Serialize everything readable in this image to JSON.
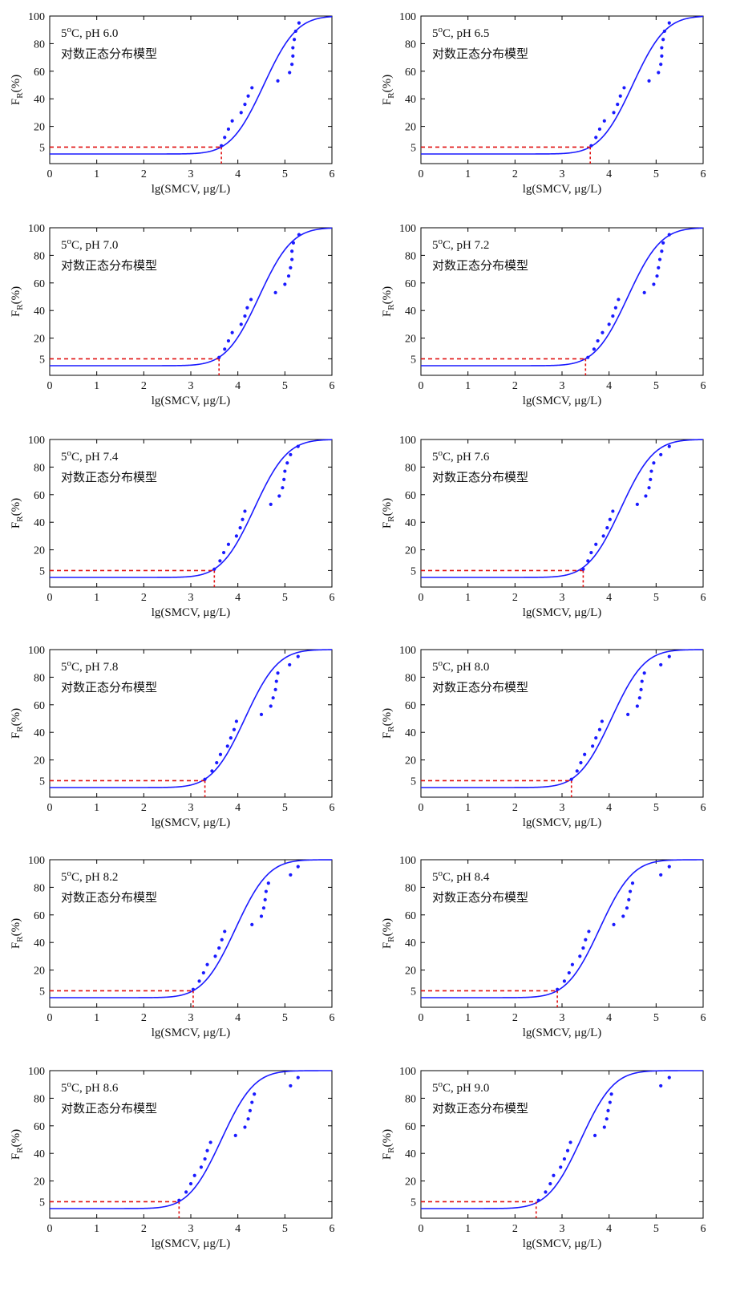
{
  "figure": {
    "xlabel": "lg(SMCV,  μg/L)",
    "ylabel_main": "F",
    "ylabel_sub": "R",
    "ylabel_tail": "(%)",
    "temp_prefix": "5",
    "temp_sup": "o",
    "temp_suffix": "C, ",
    "model_label": "对数正态分布模型",
    "colors": {
      "curve": "#1a1aff",
      "points": "#1a1aff",
      "threshold": "#e01010",
      "axis": "#000000"
    }
  },
  "chart_data": [
    {
      "type": "scatter",
      "title": "pH 6.0",
      "xlim": [
        0,
        6
      ],
      "ylim": [
        0,
        100
      ],
      "xticks": [
        0,
        1,
        2,
        3,
        4,
        5,
        6
      ],
      "yticks": [
        5,
        20,
        40,
        60,
        80,
        100
      ],
      "fit": {
        "mu": 4.55,
        "sigma": 0.55
      },
      "threshold_x": 3.65,
      "threshold_y": 5,
      "points": [
        [
          3.65,
          6
        ],
        [
          3.72,
          12
        ],
        [
          3.8,
          18
        ],
        [
          3.88,
          24
        ],
        [
          4.07,
          30
        ],
        [
          4.15,
          36
        ],
        [
          4.22,
          42
        ],
        [
          4.3,
          48
        ],
        [
          4.85,
          53
        ],
        [
          5.1,
          59
        ],
        [
          5.15,
          65
        ],
        [
          5.17,
          71
        ],
        [
          5.17,
          77
        ],
        [
          5.2,
          83
        ],
        [
          5.23,
          89
        ],
        [
          5.3,
          95
        ]
      ]
    },
    {
      "type": "scatter",
      "title": "pH 6.5",
      "xlim": [
        0,
        6
      ],
      "ylim": [
        0,
        100
      ],
      "xticks": [
        0,
        1,
        2,
        3,
        4,
        5,
        6
      ],
      "yticks": [
        5,
        20,
        40,
        60,
        80,
        100
      ],
      "fit": {
        "mu": 4.5,
        "sigma": 0.55
      },
      "threshold_x": 3.6,
      "threshold_y": 5,
      "points": [
        [
          3.62,
          6
        ],
        [
          3.72,
          12
        ],
        [
          3.8,
          18
        ],
        [
          3.9,
          24
        ],
        [
          4.1,
          30
        ],
        [
          4.18,
          36
        ],
        [
          4.24,
          42
        ],
        [
          4.32,
          48
        ],
        [
          4.85,
          53
        ],
        [
          5.05,
          59
        ],
        [
          5.1,
          65
        ],
        [
          5.12,
          71
        ],
        [
          5.12,
          77
        ],
        [
          5.15,
          83
        ],
        [
          5.18,
          89
        ],
        [
          5.28,
          95
        ]
      ]
    },
    {
      "type": "scatter",
      "title": "pH 7.0",
      "xlim": [
        0,
        6
      ],
      "ylim": [
        0,
        100
      ],
      "xticks": [
        0,
        1,
        2,
        3,
        4,
        5,
        6
      ],
      "yticks": [
        5,
        20,
        40,
        60,
        80,
        100
      ],
      "fit": {
        "mu": 4.45,
        "sigma": 0.55
      },
      "threshold_x": 3.6,
      "threshold_y": 5,
      "points": [
        [
          3.6,
          6
        ],
        [
          3.72,
          12
        ],
        [
          3.8,
          18
        ],
        [
          3.88,
          24
        ],
        [
          4.07,
          30
        ],
        [
          4.15,
          36
        ],
        [
          4.2,
          42
        ],
        [
          4.28,
          48
        ],
        [
          4.8,
          53
        ],
        [
          5,
          59
        ],
        [
          5.08,
          65
        ],
        [
          5.12,
          71
        ],
        [
          5.15,
          77
        ],
        [
          5.15,
          83
        ],
        [
          5.18,
          89
        ],
        [
          5.3,
          95
        ]
      ]
    },
    {
      "type": "scatter",
      "title": "pH 7.2",
      "xlim": [
        0,
        6
      ],
      "ylim": [
        0,
        100
      ],
      "xticks": [
        0,
        1,
        2,
        3,
        4,
        5,
        6
      ],
      "yticks": [
        5,
        20,
        40,
        60,
        80,
        100
      ],
      "fit": {
        "mu": 4.4,
        "sigma": 0.55
      },
      "threshold_x": 3.5,
      "threshold_y": 5,
      "points": [
        [
          3.55,
          6
        ],
        [
          3.68,
          12
        ],
        [
          3.76,
          18
        ],
        [
          3.86,
          24
        ],
        [
          4,
          30
        ],
        [
          4.08,
          36
        ],
        [
          4.14,
          42
        ],
        [
          4.2,
          48
        ],
        [
          4.75,
          53
        ],
        [
          4.95,
          59
        ],
        [
          5.02,
          65
        ],
        [
          5.05,
          71
        ],
        [
          5.08,
          77
        ],
        [
          5.12,
          83
        ],
        [
          5.15,
          89
        ],
        [
          5.28,
          95
        ]
      ]
    },
    {
      "type": "scatter",
      "title": "pH 7.4",
      "xlim": [
        0,
        6
      ],
      "ylim": [
        0,
        100
      ],
      "xticks": [
        0,
        1,
        2,
        3,
        4,
        5,
        6
      ],
      "yticks": [
        5,
        20,
        40,
        60,
        80,
        100
      ],
      "fit": {
        "mu": 4.35,
        "sigma": 0.55
      },
      "threshold_x": 3.5,
      "threshold_y": 5,
      "points": [
        [
          3.5,
          6
        ],
        [
          3.62,
          12
        ],
        [
          3.7,
          18
        ],
        [
          3.8,
          24
        ],
        [
          3.97,
          30
        ],
        [
          4.05,
          36
        ],
        [
          4.1,
          42
        ],
        [
          4.15,
          48
        ],
        [
          4.7,
          53
        ],
        [
          4.88,
          59
        ],
        [
          4.95,
          65
        ],
        [
          4.98,
          71
        ],
        [
          5,
          77
        ],
        [
          5.05,
          83
        ],
        [
          5.12,
          89
        ],
        [
          5.28,
          95
        ]
      ]
    },
    {
      "type": "scatter",
      "title": "pH 7.6",
      "xlim": [
        0,
        6
      ],
      "ylim": [
        0,
        100
      ],
      "xticks": [
        0,
        1,
        2,
        3,
        4,
        5,
        6
      ],
      "yticks": [
        5,
        20,
        40,
        60,
        80,
        100
      ],
      "fit": {
        "mu": 4.25,
        "sigma": 0.55
      },
      "threshold_x": 3.45,
      "threshold_y": 5,
      "points": [
        [
          3.45,
          6
        ],
        [
          3.55,
          12
        ],
        [
          3.62,
          18
        ],
        [
          3.72,
          24
        ],
        [
          3.88,
          30
        ],
        [
          3.96,
          36
        ],
        [
          4.02,
          42
        ],
        [
          4.08,
          48
        ],
        [
          4.6,
          53
        ],
        [
          4.78,
          59
        ],
        [
          4.85,
          65
        ],
        [
          4.88,
          71
        ],
        [
          4.9,
          77
        ],
        [
          4.95,
          83
        ],
        [
          5.1,
          89
        ],
        [
          5.28,
          95
        ]
      ]
    },
    {
      "type": "scatter",
      "title": "pH 7.8",
      "xlim": [
        0,
        6
      ],
      "ylim": [
        0,
        100
      ],
      "xticks": [
        0,
        1,
        2,
        3,
        4,
        5,
        6
      ],
      "yticks": [
        5,
        20,
        40,
        60,
        80,
        100
      ],
      "fit": {
        "mu": 4.15,
        "sigma": 0.55
      },
      "threshold_x": 3.3,
      "threshold_y": 5,
      "points": [
        [
          3.3,
          6
        ],
        [
          3.45,
          12
        ],
        [
          3.55,
          18
        ],
        [
          3.63,
          24
        ],
        [
          3.78,
          30
        ],
        [
          3.85,
          36
        ],
        [
          3.92,
          42
        ],
        [
          3.97,
          48
        ],
        [
          4.5,
          53
        ],
        [
          4.7,
          59
        ],
        [
          4.75,
          65
        ],
        [
          4.8,
          71
        ],
        [
          4.82,
          77
        ],
        [
          4.85,
          83
        ],
        [
          5.1,
          89
        ],
        [
          5.28,
          95
        ]
      ]
    },
    {
      "type": "scatter",
      "title": "pH 8.0",
      "xlim": [
        0,
        6
      ],
      "ylim": [
        0,
        100
      ],
      "xticks": [
        0,
        1,
        2,
        3,
        4,
        5,
        6
      ],
      "yticks": [
        5,
        20,
        40,
        60,
        80,
        100
      ],
      "fit": {
        "mu": 4.05,
        "sigma": 0.55
      },
      "threshold_x": 3.2,
      "threshold_y": 5,
      "points": [
        [
          3.2,
          6
        ],
        [
          3.32,
          12
        ],
        [
          3.4,
          18
        ],
        [
          3.48,
          24
        ],
        [
          3.65,
          30
        ],
        [
          3.72,
          36
        ],
        [
          3.8,
          42
        ],
        [
          3.85,
          48
        ],
        [
          4.4,
          53
        ],
        [
          4.6,
          59
        ],
        [
          4.65,
          65
        ],
        [
          4.68,
          71
        ],
        [
          4.7,
          77
        ],
        [
          4.75,
          83
        ],
        [
          5.1,
          89
        ],
        [
          5.28,
          95
        ]
      ]
    },
    {
      "type": "scatter",
      "title": "pH 8.2",
      "xlim": [
        0,
        6
      ],
      "ylim": [
        0,
        100
      ],
      "xticks": [
        0,
        1,
        2,
        3,
        4,
        5,
        6
      ],
      "yticks": [
        5,
        20,
        40,
        60,
        80,
        100
      ],
      "fit": {
        "mu": 3.95,
        "sigma": 0.55
      },
      "threshold_x": 3.05,
      "threshold_y": 5,
      "points": [
        [
          3.05,
          6
        ],
        [
          3.18,
          12
        ],
        [
          3.27,
          18
        ],
        [
          3.35,
          24
        ],
        [
          3.52,
          30
        ],
        [
          3.6,
          36
        ],
        [
          3.66,
          42
        ],
        [
          3.72,
          48
        ],
        [
          4.3,
          53
        ],
        [
          4.5,
          59
        ],
        [
          4.55,
          65
        ],
        [
          4.58,
          71
        ],
        [
          4.6,
          77
        ],
        [
          4.65,
          83
        ],
        [
          5.12,
          89
        ],
        [
          5.28,
          95
        ]
      ]
    },
    {
      "type": "scatter",
      "title": "pH 8.4",
      "xlim": [
        0,
        6
      ],
      "ylim": [
        0,
        100
      ],
      "xticks": [
        0,
        1,
        2,
        3,
        4,
        5,
        6
      ],
      "yticks": [
        5,
        20,
        40,
        60,
        80,
        100
      ],
      "fit": {
        "mu": 3.8,
        "sigma": 0.55
      },
      "threshold_x": 2.9,
      "threshold_y": 5,
      "points": [
        [
          2.9,
          6
        ],
        [
          3.05,
          12
        ],
        [
          3.15,
          18
        ],
        [
          3.22,
          24
        ],
        [
          3.38,
          30
        ],
        [
          3.45,
          36
        ],
        [
          3.5,
          42
        ],
        [
          3.57,
          48
        ],
        [
          4.1,
          53
        ],
        [
          4.3,
          59
        ],
        [
          4.38,
          65
        ],
        [
          4.42,
          71
        ],
        [
          4.45,
          77
        ],
        [
          4.5,
          83
        ],
        [
          5.1,
          89
        ],
        [
          5.28,
          95
        ]
      ]
    },
    {
      "type": "scatter",
      "title": "pH 8.6",
      "xlim": [
        0,
        6
      ],
      "ylim": [
        0,
        100
      ],
      "xticks": [
        0,
        1,
        2,
        3,
        4,
        5,
        6
      ],
      "yticks": [
        5,
        20,
        40,
        60,
        80,
        100
      ],
      "fit": {
        "mu": 3.65,
        "sigma": 0.55
      },
      "threshold_x": 2.75,
      "threshold_y": 5,
      "points": [
        [
          2.75,
          6
        ],
        [
          2.9,
          12
        ],
        [
          3,
          18
        ],
        [
          3.08,
          24
        ],
        [
          3.22,
          30
        ],
        [
          3.3,
          36
        ],
        [
          3.35,
          42
        ],
        [
          3.42,
          48
        ],
        [
          3.95,
          53
        ],
        [
          4.15,
          59
        ],
        [
          4.22,
          65
        ],
        [
          4.26,
          71
        ],
        [
          4.3,
          77
        ],
        [
          4.35,
          83
        ],
        [
          5.12,
          89
        ],
        [
          5.28,
          95
        ]
      ]
    },
    {
      "type": "scatter",
      "title": "pH 9.0",
      "xlim": [
        0,
        6
      ],
      "ylim": [
        0,
        100
      ],
      "xticks": [
        0,
        1,
        2,
        3,
        4,
        5,
        6
      ],
      "yticks": [
        5,
        20,
        40,
        60,
        80,
        100
      ],
      "fit": {
        "mu": 3.4,
        "sigma": 0.55
      },
      "threshold_x": 2.45,
      "threshold_y": 5,
      "points": [
        [
          2.5,
          6
        ],
        [
          2.65,
          12
        ],
        [
          2.75,
          18
        ],
        [
          2.82,
          24
        ],
        [
          2.97,
          30
        ],
        [
          3.05,
          36
        ],
        [
          3.12,
          42
        ],
        [
          3.18,
          48
        ],
        [
          3.7,
          53
        ],
        [
          3.9,
          59
        ],
        [
          3.95,
          65
        ],
        [
          3.98,
          71
        ],
        [
          4.02,
          77
        ],
        [
          4.05,
          83
        ],
        [
          5.1,
          89
        ],
        [
          5.28,
          95
        ]
      ]
    }
  ]
}
